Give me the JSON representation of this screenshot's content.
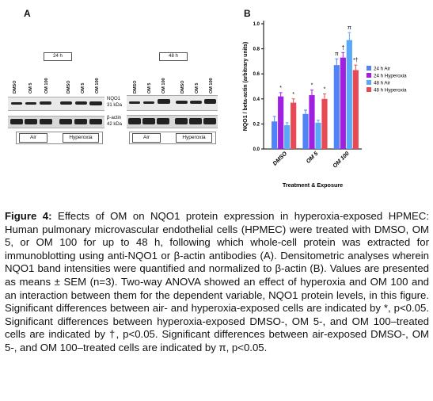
{
  "panels": {
    "a": "A",
    "b": "B"
  },
  "blot": {
    "time_labels": [
      "24 h",
      "48 h"
    ],
    "lane_labels": [
      "DMSO",
      "OM 5",
      "OM 100",
      "DMSO",
      "OM 5",
      "OM 100"
    ],
    "bands": [
      {
        "name": "NQO1",
        "size": "31 kDa"
      },
      {
        "name": "β-actin",
        "size": "42 kDa"
      }
    ],
    "conditions": [
      "Air",
      "Hyperoxia"
    ]
  },
  "chart_data": {
    "type": "bar",
    "categories": [
      "DMSO",
      "OM 5",
      "OM 100"
    ],
    "series": [
      {
        "name": "24 h Air",
        "color": "#4f83f7",
        "values": [
          0.22,
          0.28,
          0.67
        ],
        "errors": [
          0.04,
          0.03,
          0.05
        ]
      },
      {
        "name": "24 h Hyperoxia",
        "color": "#a020e0",
        "values": [
          0.42,
          0.43,
          0.73
        ],
        "errors": [
          0.03,
          0.04,
          0.04
        ]
      },
      {
        "name": "48 h Air",
        "color": "#5aa8f8",
        "values": [
          0.19,
          0.21,
          0.87
        ],
        "errors": [
          0.02,
          0.02,
          0.06
        ]
      },
      {
        "name": "48 h Hyperoxia",
        "color": "#e84a55",
        "values": [
          0.37,
          0.4,
          0.63
        ],
        "errors": [
          0.03,
          0.04,
          0.04
        ]
      }
    ],
    "annotations": [
      {
        "category": "DMSO",
        "series": 1,
        "symbol": "*"
      },
      {
        "category": "DMSO",
        "series": 3,
        "symbol": "*"
      },
      {
        "category": "OM 5",
        "series": 1,
        "symbol": "*"
      },
      {
        "category": "OM 5",
        "series": 3,
        "symbol": "*"
      },
      {
        "category": "OM 100",
        "series": 0,
        "symbol": "π"
      },
      {
        "category": "OM 100",
        "series": 1,
        "symbol": "†"
      },
      {
        "category": "OM 100",
        "series": 2,
        "symbol": "π"
      },
      {
        "category": "OM 100",
        "series": 3,
        "symbol": "*†"
      }
    ],
    "xlabel": "Treatment & Exposure",
    "ylabel": "NQO1 / beta-actin (arbitrary units)",
    "ylim": [
      0,
      1.0
    ],
    "yticks": [
      "0.0",
      "0.2",
      "0.4",
      "0.6",
      "0.8",
      "1.0"
    ],
    "legend": "top-right"
  },
  "caption": {
    "lead": "Figure 4:",
    "text": " Effects of OM on NQO1 protein expression in hyperoxia-exposed HPMEC: Human pulmonary microvascular endothelial cells (HPMEC) were treated with DMSO, OM 5, or OM 100 for up to 48 h, following which whole-cell protein was extracted for immunoblotting using anti-NQO1 or β-actin antibodies (A). Densitometric analyses wherein NQO1 band intensities were quantified and normalized to β-actin (B). Values are presented as means ± SEM (n=3). Two-way ANOVA showed an effect of hyperoxia and OM 100 and an interaction between them for the dependent variable, NQO1 protein levels, in this figure. Significant differences between air- and hyperoxia-exposed cells are indicated by *, p<0.05. Significant differences between hyperoxia-exposed DMSO-, OM 5-, and OM 100–treated cells are indicated by †, p<0.05. Significant differences between air-exposed DMSO-, OM 5-, and OM 100–treated cells are indicated by π, p<0.05."
  }
}
